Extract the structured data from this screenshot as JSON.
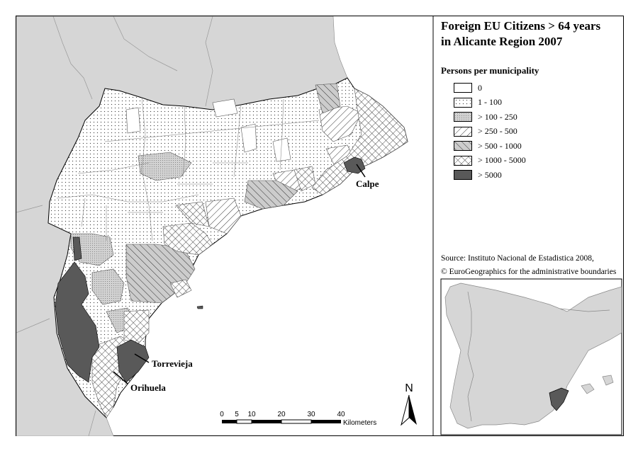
{
  "title_line1": "Foreign EU Citizens > 64 years",
  "title_line2": "in Alicante Region 2007",
  "legend": {
    "title": "Persons per municipality",
    "items": [
      {
        "label": "0",
        "fill": "#ffffff",
        "pattern": "none"
      },
      {
        "label": "1 - 100",
        "fill": "#ffffff",
        "pattern": "dots"
      },
      {
        "label": "> 100 - 250",
        "fill": "#d2d2d2",
        "pattern": "dense-dots"
      },
      {
        "label": "> 250 - 500",
        "fill": "#ffffff",
        "pattern": "hatch"
      },
      {
        "label": "> 500 - 1000",
        "fill": "#cccccc",
        "pattern": "hatch"
      },
      {
        "label": "> 1000 - 5000",
        "fill": "#ffffff",
        "pattern": "crosshatch"
      },
      {
        "label": "> 5000",
        "fill": "#595959",
        "pattern": "solid"
      }
    ]
  },
  "labels": {
    "calpe": "Calpe",
    "torrevieja": "Torrevieja",
    "orihuela": "Orihuela"
  },
  "scalebar": {
    "ticks": [
      "0",
      "5",
      "10",
      "20",
      "30",
      "40"
    ],
    "unit": "Kilometers"
  },
  "north": "N",
  "source_line1": "Source: Instituto Nacional de Estadistica 2008,",
  "source_line2": "© EuroGeographics for the administrative boundaries",
  "colors": {
    "land": "#d6d6d6",
    "sea": "#ffffff",
    "highlight": "#595959",
    "border": "#000000"
  }
}
